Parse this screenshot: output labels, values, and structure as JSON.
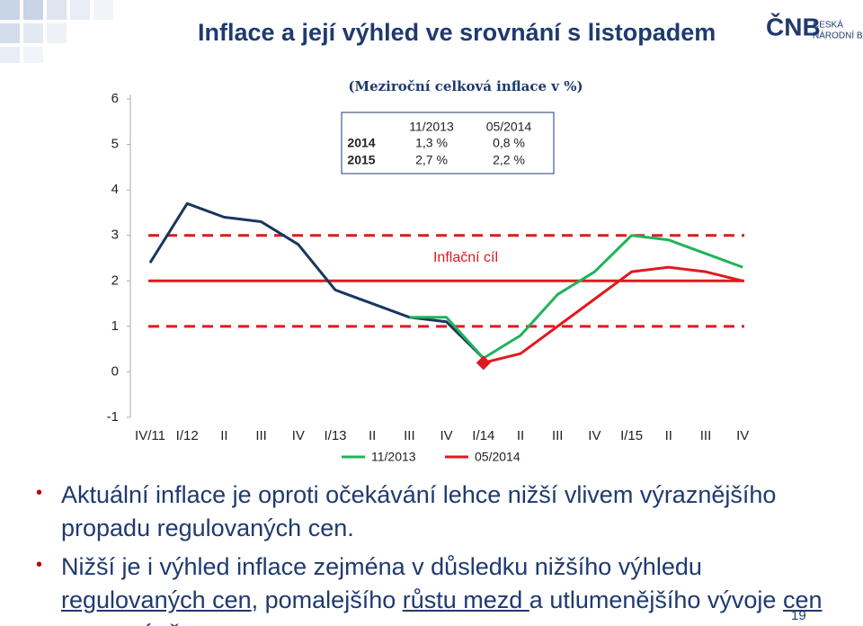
{
  "header": {
    "title": "Inflace a její výhled ve srovnání s listopadem",
    "logo_mark": "ČNB",
    "logo_line1": "ČESKÁ",
    "logo_line2": "NÁRODNÍ BANKA"
  },
  "chart_data": {
    "type": "line",
    "subtitle": "(Meziroční celková inflace v %)",
    "inset_table": {
      "header": [
        "11/2013",
        "05/2014"
      ],
      "rows": [
        [
          "2014",
          "1,3 %",
          "0,8 %"
        ],
        [
          "2015",
          "2,7 %",
          "2,2 %"
        ]
      ]
    },
    "annotation": "Inflační cíl",
    "categories": [
      "IV/11",
      "I/12",
      "II",
      "III",
      "IV",
      "I/13",
      "II",
      "III",
      "IV",
      "I/14",
      "II",
      "III",
      "IV",
      "I/15",
      "II",
      "III",
      "IV"
    ],
    "series": [
      {
        "color": "#17375e",
        "values": [
          2.4,
          3.7,
          3.4,
          3.3,
          2.8,
          1.8,
          1.5,
          1.2,
          1.1,
          0.3,
          null,
          null,
          null,
          null,
          null,
          null,
          null
        ]
      },
      {
        "name": "11/2013",
        "color": "#1fb35a",
        "values": [
          null,
          null,
          null,
          null,
          null,
          null,
          null,
          1.2,
          1.2,
          0.3,
          0.8,
          1.7,
          2.2,
          3.0,
          2.9,
          2.6,
          2.3
        ]
      },
      {
        "name": "05/2014",
        "color": "#e0191f",
        "marker": "diamond",
        "values": [
          null,
          null,
          null,
          null,
          null,
          null,
          null,
          null,
          null,
          0.2,
          0.4,
          1.0,
          1.6,
          2.2,
          2.3,
          2.2,
          2.0
        ]
      }
    ],
    "reference_lines": [
      {
        "value": 3,
        "style": "dashed",
        "color": "#e0191f"
      },
      {
        "value": 2,
        "style": "solid",
        "color": "#e0191f"
      },
      {
        "value": 1,
        "style": "dashed",
        "color": "#e0191f"
      }
    ],
    "ylim": [
      -1,
      6
    ],
    "yticks": [
      -1,
      0,
      1,
      2,
      3,
      4,
      5,
      6
    ]
  },
  "bullets": [
    [
      {
        "text": "Aktuální inflace je oproti očekávání lehce nižší vlivem výraznějšího propadu regulovaných cen."
      }
    ],
    [
      {
        "text": "Nižší je i výhled inflace zejména v důsledku nižšího výhledu "
      },
      {
        "text": "regulovaných cen",
        "underline": true
      },
      {
        "text": ", pomalejšího "
      },
      {
        "text": "růstu mezd ",
        "underline": true
      },
      {
        "text": "a utlumenějšího vývoje "
      },
      {
        "text": "cen v eurozóně",
        "underline": true
      },
      {
        "text": "."
      }
    ]
  ],
  "page_number": "19"
}
